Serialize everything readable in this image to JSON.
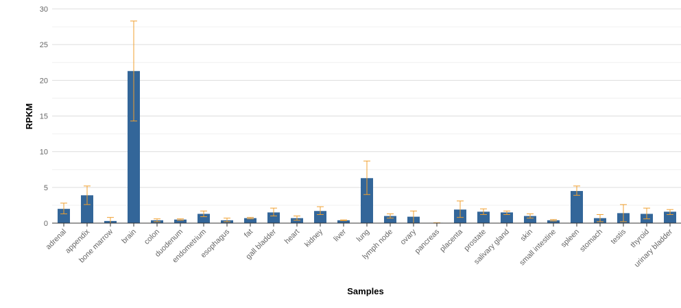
{
  "chart_data": {
    "type": "bar",
    "title": "",
    "xlabel": "Samples",
    "ylabel": "RPKM",
    "ylim": [
      0,
      30
    ],
    "yticks": [
      0,
      5,
      10,
      15,
      20,
      25,
      30
    ],
    "grid": true,
    "categories": [
      "adrenal",
      "appendix",
      "bone marrow",
      "brain",
      "colon",
      "duodenum",
      "endometrium",
      "esophagus",
      "fat",
      "gall bladder",
      "heart",
      "kidney",
      "liver",
      "lung",
      "lymph node",
      "ovary",
      "pancreas",
      "placenta",
      "prostate",
      "salivary gland",
      "skin",
      "small intestine",
      "spleen",
      "stomach",
      "testis",
      "thyroid",
      "urinary bladder"
    ],
    "values": [
      2.0,
      3.9,
      0.3,
      21.3,
      0.4,
      0.5,
      1.3,
      0.4,
      0.7,
      1.5,
      0.7,
      1.7,
      0.4,
      6.3,
      1.0,
      0.9,
      0.05,
      1.9,
      1.6,
      1.5,
      1.0,
      0.4,
      4.5,
      0.7,
      1.4,
      1.3,
      1.6
    ],
    "error_low": [
      1.3,
      2.6,
      0.0,
      14.3,
      0.2,
      0.4,
      0.9,
      0.2,
      0.6,
      1.0,
      0.4,
      1.2,
      0.35,
      4.0,
      0.7,
      0.0,
      0.0,
      0.8,
      1.2,
      1.2,
      0.7,
      0.3,
      3.9,
      0.2,
      0.2,
      0.6,
      1.2
    ],
    "error_high": [
      2.8,
      5.2,
      0.8,
      28.3,
      0.6,
      0.6,
      1.7,
      0.7,
      0.8,
      2.1,
      1.0,
      2.3,
      0.45,
      8.7,
      1.3,
      1.7,
      0.05,
      3.1,
      2.0,
      1.7,
      1.3,
      0.5,
      5.2,
      1.2,
      2.6,
      2.1,
      1.9
    ],
    "colors": {
      "bar": "#336699",
      "error": "#f0a030",
      "grid": "#dddddd",
      "axis": "#333333"
    }
  }
}
